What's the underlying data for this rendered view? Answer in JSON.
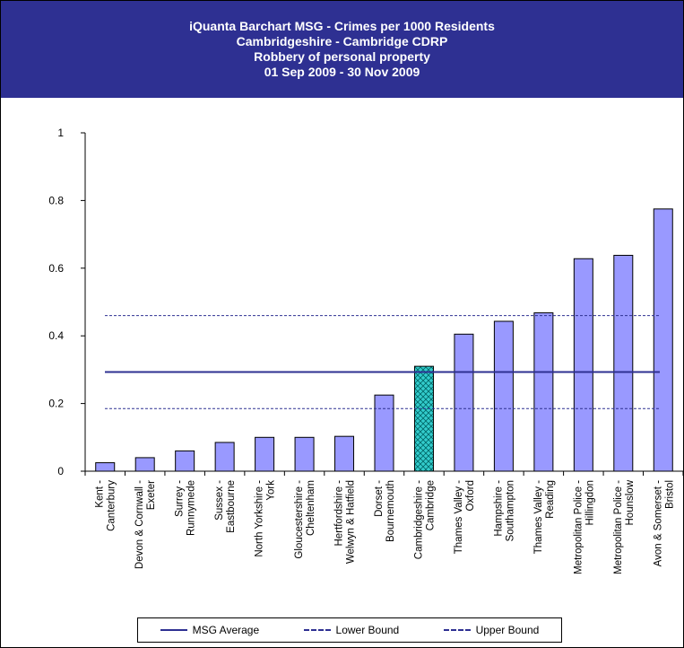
{
  "header": {
    "title": "iQuanta Barchart MSG - Crimes per 1000 Residents",
    "subtitle1": "Cambridgeshire - Cambridge CDRP",
    "subtitle2": "Robbery of personal property",
    "subtitle3": "01 Sep 2009 - 30 Nov 2009"
  },
  "legend": {
    "msg_average": "MSG Average",
    "lower_bound": "Lower Bound",
    "upper_bound": "Upper Bound"
  },
  "colors": {
    "header_bg": "#2e3092",
    "bar_fill": "#9999ff",
    "highlight_fill": "#33cccc",
    "line": "#2e3092"
  },
  "chart_data": {
    "type": "bar",
    "title": "iQuanta Barchart MSG - Crimes per 1000 Residents",
    "ylim": [
      0,
      1
    ],
    "yticks": [
      "0",
      "0.2",
      "0.4",
      "0.6",
      "0.8",
      "1"
    ],
    "categories": [
      [
        "Kent -",
        "Canterbury"
      ],
      [
        "Devon & Cornwall -",
        "Exeter"
      ],
      [
        "Surrey -",
        "Runnymede"
      ],
      [
        "Sussex -",
        "Eastbourne"
      ],
      [
        "North Yorkshire -",
        "York"
      ],
      [
        "Gloucestershire -",
        "Cheltenham"
      ],
      [
        "Hertfordshire -",
        "Welwyn & Hatfield"
      ],
      [
        "Dorset -",
        "Bournemouth"
      ],
      [
        "Cambridgeshire -",
        "Cambridge"
      ],
      [
        "Thames Valley -",
        "Oxford"
      ],
      [
        "Hampshire -",
        "Southampton"
      ],
      [
        "Thames Valley -",
        "Reading"
      ],
      [
        "Metropolitan Police -",
        "Hillingdon"
      ],
      [
        "Metropolitan Police -",
        "Hounslow"
      ],
      [
        "Avon & Somerset -",
        "Bristol"
      ]
    ],
    "values": [
      0.025,
      0.04,
      0.06,
      0.085,
      0.1,
      0.1,
      0.103,
      0.225,
      0.31,
      0.405,
      0.443,
      0.468,
      0.628,
      0.638,
      0.775
    ],
    "highlight_index": 8,
    "reference_lines": {
      "msg_average": 0.293,
      "lower_bound": 0.185,
      "upper_bound": 0.46
    },
    "legend_position": "bottom"
  }
}
